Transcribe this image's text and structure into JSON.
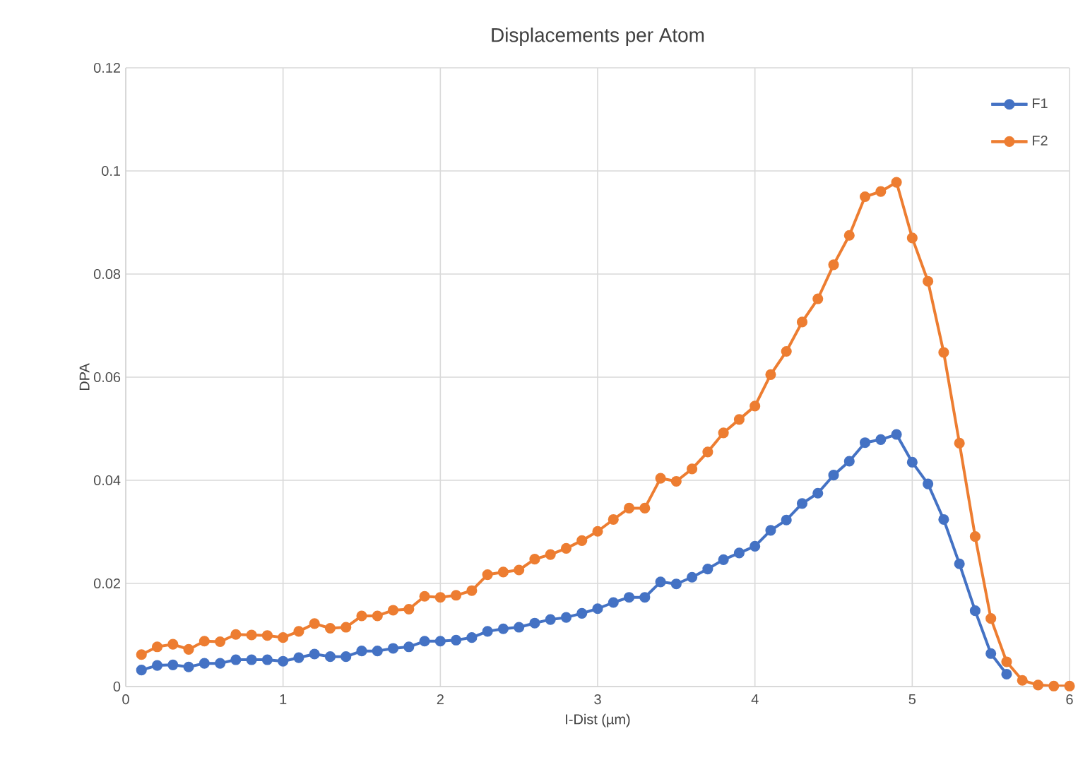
{
  "chart_data": {
    "type": "line",
    "title": "Displacements per Atom",
    "xlabel": "I-Dist (µm)",
    "ylabel": "DPA",
    "xlim": [
      0,
      6
    ],
    "xticks": [
      0,
      1,
      2,
      3,
      4,
      5,
      6
    ],
    "ylim": [
      0,
      0.12
    ],
    "yticks": [
      0,
      0.02,
      0.04,
      0.06,
      0.08,
      0.1,
      0.12
    ],
    "grid": true,
    "legend": "top right",
    "marker": "circle",
    "line_style": "solid",
    "series": [
      {
        "name": "F1",
        "color": "#4472c4",
        "x": [
          0.1,
          0.2,
          0.3,
          0.4,
          0.5,
          0.6,
          0.7,
          0.8,
          0.9,
          1.0,
          1.1,
          1.2,
          1.3,
          1.4,
          1.5,
          1.6,
          1.7,
          1.8,
          1.9,
          2.0,
          2.1,
          2.2,
          2.3,
          2.4,
          2.5,
          2.6,
          2.7,
          2.8,
          2.9,
          3.0,
          3.1,
          3.2,
          3.3,
          3.4,
          3.5,
          3.6,
          3.7,
          3.8,
          3.9,
          4.0,
          4.1,
          4.2,
          4.3,
          4.4,
          4.5,
          4.6,
          4.7,
          4.8,
          4.9,
          5.0,
          5.1,
          5.2,
          5.3,
          5.4,
          5.5,
          5.6
        ],
        "values": [
          0.0032,
          0.0041,
          0.0042,
          0.0038,
          0.0045,
          0.0045,
          0.0052,
          0.0052,
          0.0052,
          0.0049,
          0.0056,
          0.0063,
          0.0058,
          0.0058,
          0.0069,
          0.0069,
          0.0074,
          0.0077,
          0.0088,
          0.0088,
          0.009,
          0.0095,
          0.0107,
          0.0112,
          0.0115,
          0.0123,
          0.013,
          0.0134,
          0.0142,
          0.0151,
          0.0163,
          0.0173,
          0.0173,
          0.0203,
          0.0199,
          0.0212,
          0.0228,
          0.0246,
          0.0259,
          0.0272,
          0.0303,
          0.0323,
          0.0355,
          0.0375,
          0.041,
          0.0437,
          0.0473,
          0.0479,
          0.0489,
          0.0435,
          0.0393,
          0.0324,
          0.0238,
          0.0147,
          0.0064,
          0.0024
        ]
      },
      {
        "name": "F2",
        "color": "#ed7d31",
        "x": [
          0.1,
          0.2,
          0.3,
          0.4,
          0.5,
          0.6,
          0.7,
          0.8,
          0.9,
          1.0,
          1.1,
          1.2,
          1.3,
          1.4,
          1.5,
          1.6,
          1.7,
          1.8,
          1.9,
          2.0,
          2.1,
          2.2,
          2.3,
          2.4,
          2.5,
          2.6,
          2.7,
          2.8,
          2.9,
          3.0,
          3.1,
          3.2,
          3.3,
          3.4,
          3.5,
          3.6,
          3.7,
          3.8,
          3.9,
          4.0,
          4.1,
          4.2,
          4.3,
          4.4,
          4.5,
          4.6,
          4.7,
          4.8,
          4.9,
          5.0,
          5.1,
          5.2,
          5.3,
          5.4,
          5.5,
          5.6,
          5.7,
          5.8,
          5.9,
          6.0
        ],
        "values": [
          0.0062,
          0.0077,
          0.0082,
          0.0072,
          0.0088,
          0.0087,
          0.0101,
          0.01,
          0.0099,
          0.0095,
          0.0107,
          0.0122,
          0.0113,
          0.0115,
          0.0137,
          0.0137,
          0.0148,
          0.015,
          0.0175,
          0.0173,
          0.0177,
          0.0186,
          0.0217,
          0.0222,
          0.0226,
          0.0247,
          0.0256,
          0.0268,
          0.0283,
          0.0301,
          0.0324,
          0.0346,
          0.0346,
          0.0404,
          0.0398,
          0.0422,
          0.0455,
          0.0492,
          0.0518,
          0.0544,
          0.0605,
          0.065,
          0.0707,
          0.0752,
          0.0818,
          0.0875,
          0.095,
          0.096,
          0.0978,
          0.087,
          0.0786,
          0.0648,
          0.0472,
          0.0291,
          0.0132,
          0.0048,
          0.0012,
          0.0003,
          0.0001,
          0.0001
        ]
      }
    ]
  }
}
